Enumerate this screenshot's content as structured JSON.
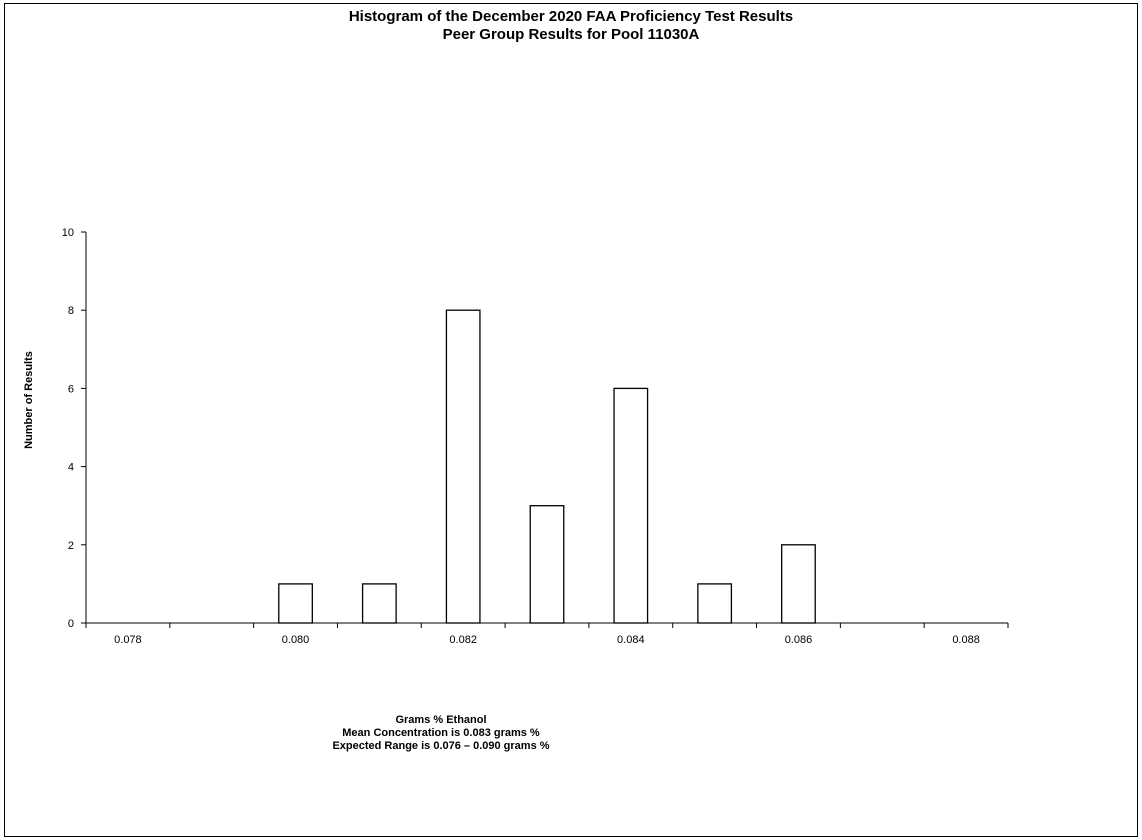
{
  "chart_data": {
    "type": "bar",
    "title": "Histogram of the December 2020 FAA Proficiency Test Results",
    "subtitle": "Peer Group Results for Pool 11030A",
    "xlabel": "Grams % Ethanol",
    "ylabel": "Number of Results",
    "notes": [
      "Mean Concentration is 0.083 grams %",
      "Expected Range is  0.076 – 0.090 grams %"
    ],
    "categories": [
      "0.078",
      "0.079",
      "0.080",
      "0.081",
      "0.082",
      "0.083",
      "0.084",
      "0.085",
      "0.086",
      "0.087",
      "0.088"
    ],
    "x_tick_labels": [
      "0.078",
      "0.080",
      "0.082",
      "0.084",
      "0.086",
      "0.088"
    ],
    "values": [
      0,
      0,
      1,
      1,
      8,
      3,
      6,
      1,
      2,
      0,
      0
    ],
    "ylim": [
      0,
      10
    ],
    "y_ticks": [
      0,
      2,
      4,
      6,
      8,
      10
    ],
    "grid": false,
    "legend": "none",
    "bar_fill": "#ffffff",
    "bar_stroke": "#000000"
  }
}
